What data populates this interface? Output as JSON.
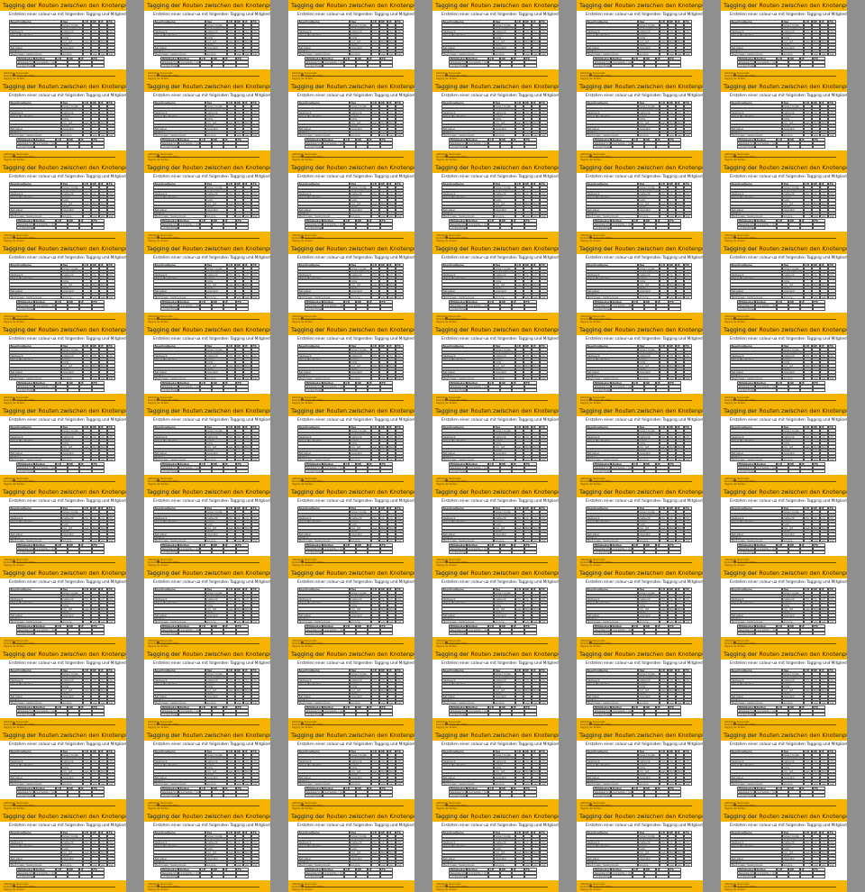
{
  "slide": {
    "title": "Tagging der Routen zwischen den Knotenpunkten",
    "subtitle": "Erstellen einer colour-ua mit folgenden Tagging und Mitgliedern",
    "table1": {
      "headers": [
        "Beschreibung",
        "Tag",
        "CH",
        "DE",
        "IE",
        "FR"
      ],
      "rows": [
        [
          "",
          "type=route",
          "",
          "",
          "",
          ""
        ],
        [
          "",
          "route=bicycle",
          "",
          "",
          "",
          ""
        ],
        [
          "Netzwerk",
          "network",
          "rcn",
          "rcn",
          "rcn",
          "rcn"
        ],
        [
          "Von & Bis Knoten",
          "name",
          "",
          "",
          "",
          ""
        ],
        [
          "",
          "note",
          "",
          "",
          "",
          ""
        ],
        [
          "",
          "rcn_ref",
          "yes",
          "Nord",
          "Nord",
          ""
        ],
        [
          "",
          "state",
          "",
          "",
          "",
          ""
        ],
        [
          "Betreiber",
          "operator",
          "",
          "",
          "",
          ""
        ],
        [
          "Weitere",
          "",
          "",
          "",
          "",
          ""
        ],
        [
          "Merkmale / Verbindung",
          "source",
          "",
          "yes",
          "yes",
          "yes"
        ]
      ]
    },
    "table2": {
      "headers": [
        "Mitglieder",
        "Rollen",
        "CH",
        "DE",
        "IE",
        "FR"
      ],
      "rows": [
        [
          "Wegabschnitte",
          "(vorwärts / rückwärts)",
          "",
          "",
          "",
          ""
        ],
        [
          "Lückenfüller",
          "",
          "",
          "",
          "",
          ""
        ]
      ]
    },
    "footer": {
      "line1": "OSM-Radknotenpunkte",
      "line2": "Radnetze auf OpenStreetMap",
      "line3": "Tagging der Routen"
    }
  },
  "colors": {
    "band": "#f5b400",
    "page": "#ffffff",
    "background": "#8f8f8f"
  }
}
